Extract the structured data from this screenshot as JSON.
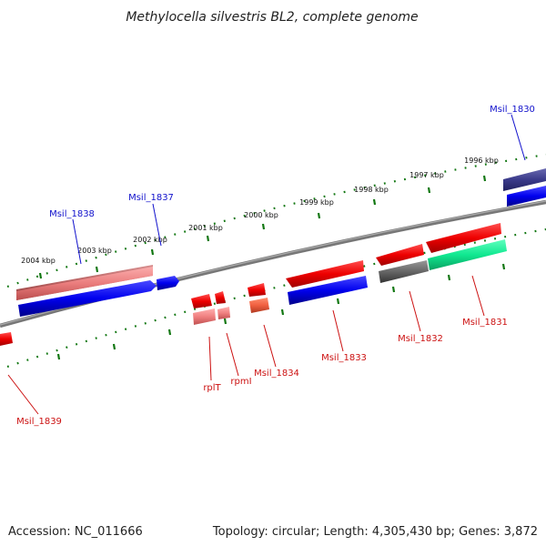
{
  "title": "Methylocella silvestris BL2, complete genome",
  "footer": {
    "accession": "Accession: NC_011666",
    "topology": "Topology: circular; Length: 4,305,430 bp; Genes: 3,872"
  },
  "scale_labels": [
    "2004 kbp",
    "2003 kbp",
    "2002 kbp",
    "2001 kbp",
    "2000 kbp",
    "1999 kbp",
    "1998 kbp",
    "1997 kbp",
    "1996 kbp"
  ],
  "genes_top": [
    {
      "label": "Msil_1838",
      "color": "#1111cc"
    },
    {
      "label": "Msil_1837",
      "color": "#1111cc"
    },
    {
      "label": "Msil_1830",
      "color": "#1111cc"
    }
  ],
  "genes_bottom": [
    {
      "label": "Msil_1839",
      "color": "#cc1111"
    },
    {
      "label": "rplT",
      "color": "#cc1111"
    },
    {
      "label": "rpmI",
      "color": "#cc1111"
    },
    {
      "label": "Msil_1834",
      "color": "#cc1111"
    },
    {
      "label": "Msil_1833",
      "color": "#cc1111"
    },
    {
      "label": "Msil_1832",
      "color": "#cc1111"
    },
    {
      "label": "Msil_1831",
      "color": "#cc1111"
    }
  ],
  "colors": {
    "forward_cds": "#0000ee",
    "reverse_cds": "#ee0000",
    "rna": "#f08080",
    "backbone": "#777777",
    "ticks": "#117711"
  }
}
